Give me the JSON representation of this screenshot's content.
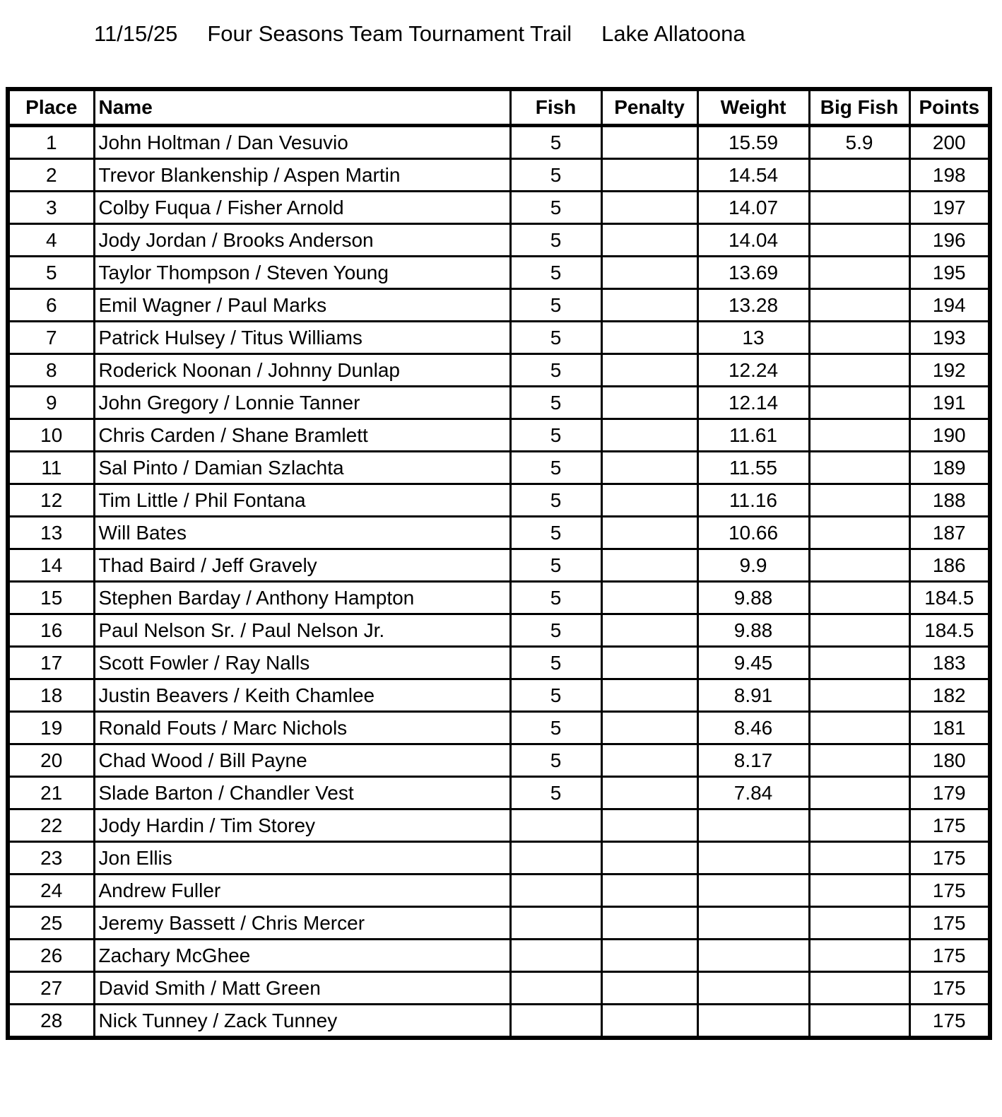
{
  "header": {
    "date": "11/15/25",
    "event": "Four Seasons Team Tournament Trail",
    "lake": "Lake Allatoona"
  },
  "columns": [
    "Place",
    "Name",
    "Fish",
    "Penalty",
    "Weight",
    "Big Fish",
    "Points"
  ],
  "rows": [
    [
      "1",
      "John Holtman / Dan Vesuvio",
      "5",
      "",
      "15.59",
      "5.9",
      "200"
    ],
    [
      "2",
      "Trevor Blankenship / Aspen Martin",
      "5",
      "",
      "14.54",
      "",
      "198"
    ],
    [
      "3",
      "Colby Fuqua / Fisher Arnold",
      "5",
      "",
      "14.07",
      "",
      "197"
    ],
    [
      "4",
      "Jody Jordan / Brooks Anderson",
      "5",
      "",
      "14.04",
      "",
      "196"
    ],
    [
      "5",
      "Taylor Thompson / Steven Young",
      "5",
      "",
      "13.69",
      "",
      "195"
    ],
    [
      "6",
      "Emil Wagner / Paul Marks",
      "5",
      "",
      "13.28",
      "",
      "194"
    ],
    [
      "7",
      "Patrick Hulsey / Titus Williams",
      "5",
      "",
      "13",
      "",
      "193"
    ],
    [
      "8",
      "Roderick Noonan / Johnny Dunlap",
      "5",
      "",
      "12.24",
      "",
      "192"
    ],
    [
      "9",
      "John Gregory / Lonnie Tanner",
      "5",
      "",
      "12.14",
      "",
      "191"
    ],
    [
      "10",
      "Chris Carden / Shane Bramlett",
      "5",
      "",
      "11.61",
      "",
      "190"
    ],
    [
      "11",
      "Sal Pinto / Damian Szlachta",
      "5",
      "",
      "11.55",
      "",
      "189"
    ],
    [
      "12",
      "Tim Little / Phil Fontana",
      "5",
      "",
      "11.16",
      "",
      "188"
    ],
    [
      "13",
      "Will Bates",
      "5",
      "",
      "10.66",
      "",
      "187"
    ],
    [
      "14",
      "Thad Baird / Jeff Gravely",
      "5",
      "",
      "9.9",
      "",
      "186"
    ],
    [
      "15",
      "Stephen Barday / Anthony Hampton",
      "5",
      "",
      "9.88",
      "",
      "184.5"
    ],
    [
      "16",
      "Paul Nelson Sr. / Paul Nelson Jr.",
      "5",
      "",
      "9.88",
      "",
      "184.5"
    ],
    [
      "17",
      "Scott Fowler / Ray Nalls",
      "5",
      "",
      "9.45",
      "",
      "183"
    ],
    [
      "18",
      "Justin Beavers / Keith Chamlee",
      "5",
      "",
      "8.91",
      "",
      "182"
    ],
    [
      "19",
      "Ronald Fouts / Marc Nichols",
      "5",
      "",
      "8.46",
      "",
      "181"
    ],
    [
      "20",
      "Chad Wood / Bill Payne",
      "5",
      "",
      "8.17",
      "",
      "180"
    ],
    [
      "21",
      "Slade Barton / Chandler Vest",
      "5",
      "",
      "7.84",
      "",
      "179"
    ],
    [
      "22",
      "Jody Hardin / Tim Storey",
      "",
      "",
      "",
      "",
      "175"
    ],
    [
      "23",
      "Jon Ellis",
      "",
      "",
      "",
      "",
      "175"
    ],
    [
      "24",
      "Andrew Fuller",
      "",
      "",
      "",
      "",
      "175"
    ],
    [
      "25",
      "Jeremy Bassett / Chris Mercer",
      "",
      "",
      "",
      "",
      "175"
    ],
    [
      "26",
      "Zachary McGhee",
      "",
      "",
      "",
      "",
      "175"
    ],
    [
      "27",
      "David Smith / Matt Green",
      "",
      "",
      "",
      "",
      "175"
    ],
    [
      "28",
      "Nick Tunney / Zack Tunney",
      "",
      "",
      "",
      "",
      "175"
    ]
  ]
}
